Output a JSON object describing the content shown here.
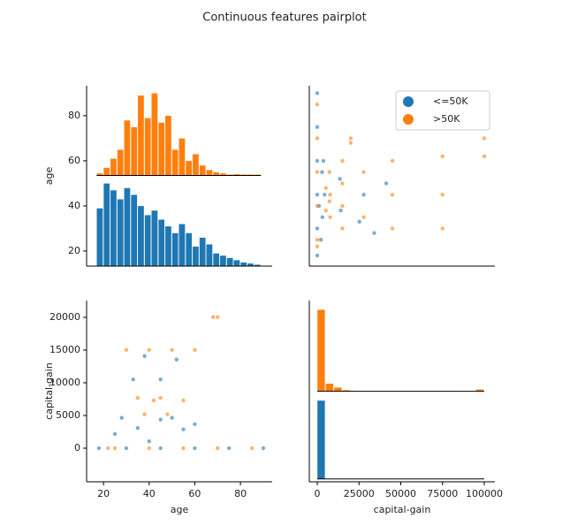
{
  "title": "Continuous features pairplot",
  "chart_data": [
    {
      "type": "histogram",
      "ylabel": "age",
      "xlim": [
        12.6,
        93.9
      ],
      "ylim": [
        13.3,
        93.3
      ],
      "yticks": [
        20,
        40,
        60,
        80
      ],
      "bins": [
        17,
        20,
        23,
        26,
        29,
        32,
        35,
        38,
        41,
        44,
        47,
        50,
        53,
        56,
        59,
        62,
        65,
        68,
        71,
        74,
        77,
        80,
        83,
        86,
        89
      ],
      "series": [
        {
          "name": "<=50K",
          "color": "#1f77b4",
          "baseline": 13.3,
          "values": [
            39,
            50,
            47,
            43,
            48,
            45,
            40,
            36,
            38,
            34,
            31,
            28,
            32,
            28,
            22,
            26,
            23,
            19,
            18,
            17,
            16,
            15,
            14.5,
            14
          ]
        },
        {
          "name": ">50K",
          "color": "#ff7f0e",
          "baseline": 53.5,
          "values": [
            54.5,
            57,
            61,
            65,
            78,
            75,
            89,
            79,
            90,
            77,
            80,
            65,
            70,
            60,
            63,
            58,
            56,
            55,
            54.5,
            54,
            54.2,
            54,
            54,
            54
          ]
        }
      ]
    },
    {
      "type": "scatter",
      "legend": "upper right",
      "xlim": [
        -4762,
        106349
      ],
      "ylim": [
        13.3,
        93.3
      ],
      "series": [
        {
          "name": "<=50K",
          "color": "#1f77b4",
          "x": [
            0,
            0,
            0,
            0,
            0,
            0,
            2174,
            3103,
            4386,
            2885,
            1055,
            3674,
            14084,
            13550,
            27828,
            25236,
            41310,
            34095
          ],
          "values": [
            18,
            30,
            45,
            60,
            75,
            90,
            25,
            35,
            45,
            55,
            40,
            60,
            38,
            52,
            45,
            33,
            50,
            28
          ]
        },
        {
          "name": ">50K",
          "color": "#ff7f0e",
          "x": [
            0,
            0,
            0,
            0,
            0,
            0,
            15024,
            15024,
            15024,
            15024,
            7688,
            7688,
            7298,
            7298,
            20051,
            20051,
            5178,
            5178,
            27828,
            27828,
            45000,
            45000,
            45000,
            75000,
            75000,
            75000,
            99999,
            99999
          ],
          "values": [
            22,
            25,
            40,
            55,
            70,
            85,
            30,
            40,
            50,
            60,
            35,
            45,
            55,
            42,
            68,
            70,
            38,
            48,
            35,
            55,
            30,
            45,
            60,
            30,
            45,
            62,
            62,
            70
          ]
        }
      ]
    },
    {
      "type": "scatter",
      "xlabel": "age",
      "ylabel": "capital-gain",
      "xlim": [
        12.6,
        93.9
      ],
      "ylim": [
        -5135,
        22570
      ],
      "xticks": [
        20,
        40,
        60,
        80
      ],
      "yticks": [
        0,
        5000,
        10000,
        15000,
        20000
      ],
      "series": [
        {
          "name": "<=50K",
          "color": "#1f77b4",
          "x": [
            18,
            30,
            45,
            60,
            75,
            90,
            25,
            35,
            45,
            55,
            40,
            60,
            38,
            52,
            45,
            33,
            50,
            28
          ],
          "values": [
            0,
            0,
            0,
            0,
            0,
            0,
            2174,
            3103,
            4386,
            2885,
            1055,
            3674,
            14084,
            13550,
            10520,
            10520,
            4650,
            4650
          ]
        },
        {
          "name": ">50K",
          "color": "#ff7f0e",
          "x": [
            22,
            25,
            40,
            55,
            70,
            85,
            30,
            40,
            50,
            60,
            35,
            45,
            55,
            42,
            68,
            70,
            38,
            48
          ],
          "values": [
            0,
            0,
            0,
            0,
            0,
            0,
            15024,
            15024,
            15024,
            15024,
            7688,
            7688,
            7298,
            7298,
            20051,
            20051,
            5178,
            5178
          ]
        }
      ]
    },
    {
      "type": "histogram",
      "xlabel": "capital-gain",
      "xlim": [
        -4762,
        106349
      ],
      "ylim": [
        -5135,
        22570
      ],
      "xticks": [
        0,
        25000,
        50000,
        75000,
        100000
      ],
      "bins": [
        0,
        5000,
        10000,
        15000,
        20000,
        25000,
        30000,
        35000,
        40000,
        45000,
        50000,
        55000,
        60000,
        65000,
        70000,
        75000,
        80000,
        85000,
        90000,
        95000,
        100000
      ],
      "series": [
        {
          "name": "<=50K",
          "color": "#1f77b4",
          "baseline": -4700,
          "values": [
            7300,
            -4700,
            -4700,
            -4700,
            -4700,
            -4700,
            -4700,
            -4700,
            -4700,
            -4700,
            -4700,
            -4700,
            -4700,
            -4700,
            -4700,
            -4700,
            -4700,
            -4700,
            -4700,
            -4700
          ]
        },
        {
          "name": ">50K",
          "color": "#ff7f0e",
          "baseline": 8700,
          "values": [
            21200,
            9900,
            9300,
            8900,
            8800,
            8750,
            8720,
            8720,
            8710,
            8710,
            8710,
            8710,
            8710,
            8710,
            8710,
            8720,
            8710,
            8710,
            8710,
            9000
          ]
        }
      ]
    }
  ]
}
